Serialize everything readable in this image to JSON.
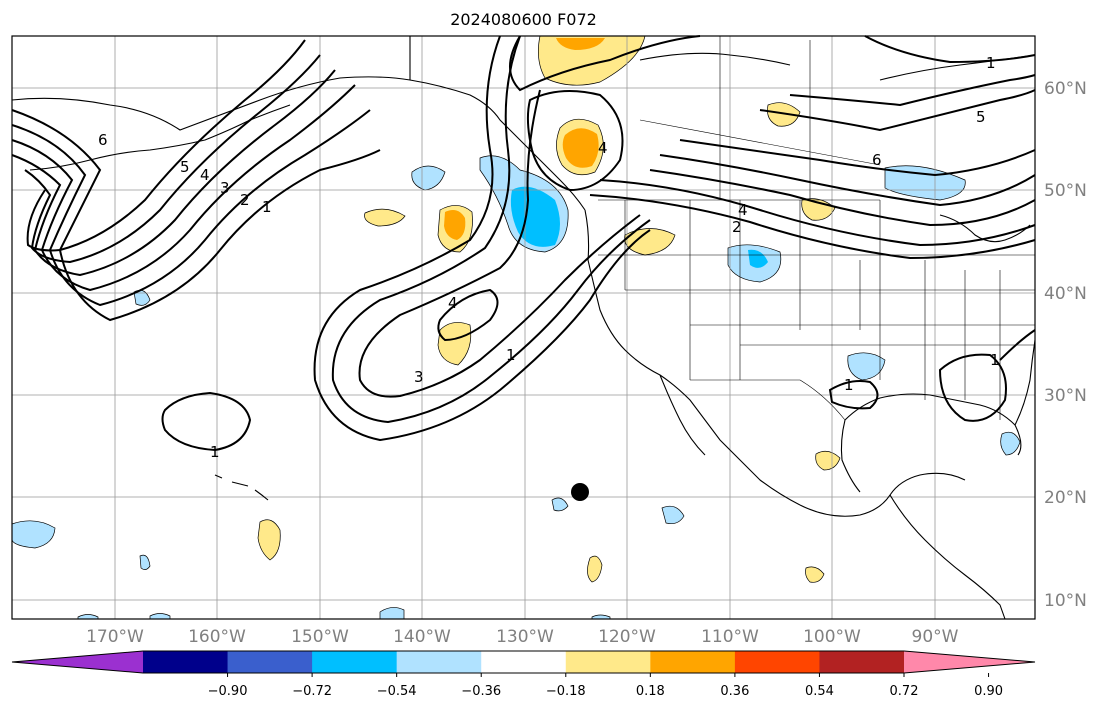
{
  "title": "2024080600 F072",
  "map": {
    "lon_range": [
      -180,
      -80
    ],
    "lat_range": [
      8,
      65
    ],
    "lat_labels": [
      "10°N",
      "20°N",
      "30°N",
      "40°N",
      "50°N",
      "60°N"
    ],
    "lon_labels": [
      "170°W",
      "160°W",
      "150°W",
      "140°W",
      "130°W",
      "120°W",
      "110°W",
      "100°W",
      "90°W"
    ],
    "contour_labels": [
      "1",
      "2",
      "3",
      "4",
      "5",
      "6"
    ]
  },
  "colorbar": {
    "ticks": [
      "−0.90",
      "−0.72",
      "−0.54",
      "−0.36",
      "−0.18",
      "0.18",
      "0.36",
      "0.54",
      "0.72",
      "0.90"
    ],
    "colors": [
      "#9b30d0",
      "#00008b",
      "#3a5fcd",
      "#00bfff",
      "#b0e2ff",
      "#ffffff",
      "#ffe98a",
      "#ffa500",
      "#ff4500",
      "#b22222",
      "#ff88aa"
    ]
  }
}
